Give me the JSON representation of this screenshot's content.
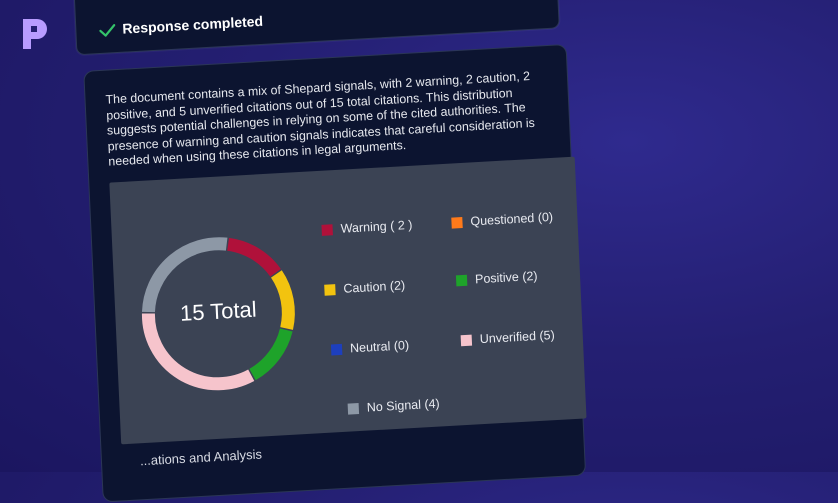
{
  "response": {
    "status_label": "Response completed"
  },
  "summary": {
    "text": "The document contains a mix of Shepard signals, with 2 warning, 2 caution, 2 positive, and 5 unverified citations out of 15 total citations. This distribution suggests potential challenges in relying on some of the cited authorities. The presence of warning and caution signals indicates that careful consideration is needed when using these citations in legal arguments."
  },
  "chart_data": {
    "type": "pie",
    "title": "",
    "center_label": "15 Total",
    "categories": [
      "Warning",
      "Questioned",
      "Caution",
      "Positive",
      "Neutral",
      "Unverified",
      "No Signal"
    ],
    "values": [
      2,
      0,
      2,
      2,
      0,
      5,
      4
    ],
    "colors": [
      "#b0113a",
      "#ff7a1a",
      "#f2c30f",
      "#1ea32a",
      "#1d3fbd",
      "#f6c4cc",
      "#8d98a6"
    ],
    "legend_labels": [
      "Warning ( 2 )",
      "Questioned (0)",
      "Caution (2)",
      "Positive (2)",
      "Neutral (0)",
      "Unverified (5)",
      "No Signal (4)"
    ],
    "legend_placement": "right"
  },
  "footer": {
    "section_label": "...ations and Analysis"
  }
}
